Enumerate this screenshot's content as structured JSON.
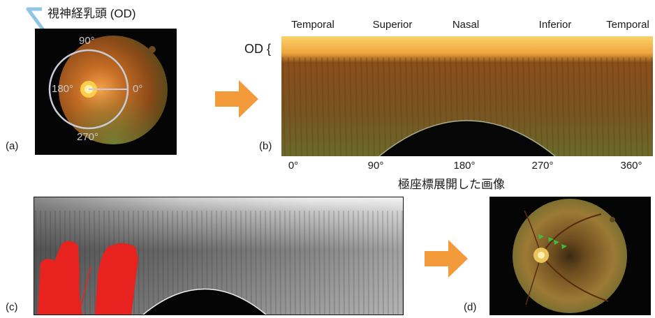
{
  "panel_a": {
    "label": "(a)",
    "callout": "視神経乳頭 (OD)",
    "angles": {
      "a90": "90°",
      "a180": "180°",
      "a0": "0°",
      "a270": "270°"
    }
  },
  "panel_b": {
    "label": "(b)",
    "eye": "OD {",
    "directions": [
      "Temporal",
      "Superior",
      "Nasal",
      "Inferior",
      "Temporal"
    ],
    "ticks": [
      "0°",
      "90°",
      "180°",
      "270°",
      "360°"
    ],
    "caption": "極座標展開した画像"
  },
  "panel_c": {
    "label": "(c)"
  },
  "panel_d": {
    "label": "(d)"
  },
  "colors": {
    "arrow": "#f39a3a",
    "callout_line": "#8ec6e6",
    "overlay_red": "#e8231f",
    "marker_green": "#3dbd3d",
    "fundus_orange": "#c9772b"
  }
}
